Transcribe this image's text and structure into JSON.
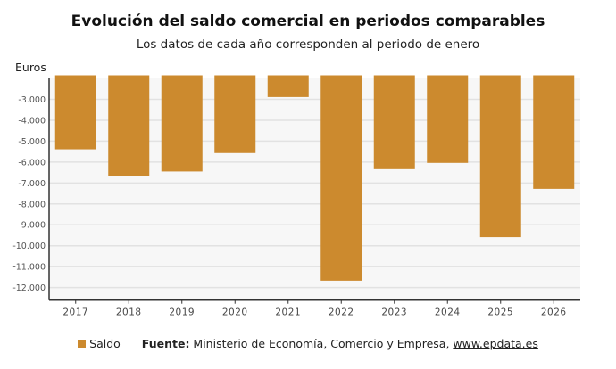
{
  "chart_data": {
    "type": "bar",
    "title": "Evolución del saldo comercial en periodos comparables",
    "subtitle": "Los datos de cada año corresponden al periodo de enero",
    "ylabel": "Euros",
    "xlabel": "",
    "categories": [
      "2017",
      "2018",
      "2019",
      "2020",
      "2021",
      "2022",
      "2023",
      "2024",
      "2025",
      "2026"
    ],
    "series": [
      {
        "name": "Saldo",
        "values": [
          -5390,
          -6670,
          -6450,
          -5570,
          -2890,
          -11670,
          -6340,
          -6040,
          -9590,
          -7280
        ],
        "color": "#cc8a2e"
      }
    ],
    "ylim": [
      -12600,
      -1850
    ],
    "yticks": [
      -3000,
      -4000,
      -5000,
      -6000,
      -7000,
      -8000,
      -9000,
      -10000,
      -11000,
      -12000
    ],
    "ytick_labels": [
      "-3.000",
      "-4.000",
      "-5.000",
      "-6.000",
      "-7.000",
      "-8.000",
      "-9.000",
      "-10.000",
      "-11.000",
      "-12.000"
    ],
    "grid": true,
    "legend": "bottom"
  },
  "footer": {
    "legend_label": "Saldo",
    "source_label": "Fuente:",
    "source_text": " Ministerio de Economía, Comercio y Empresa, ",
    "source_link": "www.epdata.es"
  }
}
